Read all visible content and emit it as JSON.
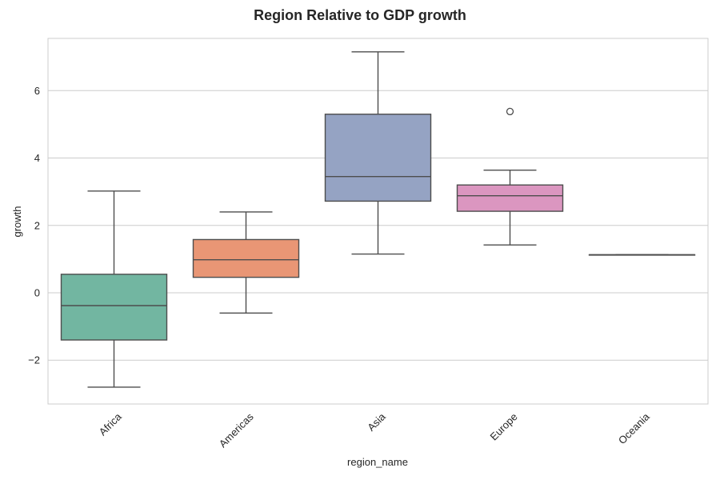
{
  "chart_data": {
    "type": "box",
    "title": "Region Relative to GDP growth",
    "xlabel": "region_name",
    "ylabel": "growth",
    "ylim": [
      -3.3,
      7.55
    ],
    "yticks": [
      -2,
      0,
      2,
      4,
      6
    ],
    "ytick_labels": [
      "−2",
      "0",
      "2",
      "4",
      "6"
    ],
    "grid": true,
    "categories": [
      "Africa",
      "Americas",
      "Asia",
      "Europe",
      "Oceania"
    ],
    "boxes": [
      {
        "name": "Africa",
        "whisker_low": -2.8,
        "q1": -1.4,
        "median": -0.38,
        "q3": 0.55,
        "whisker_high": 3.02,
        "outliers": [],
        "color": "#72b6a1"
      },
      {
        "name": "Americas",
        "whisker_low": -0.6,
        "q1": 0.46,
        "median": 0.98,
        "q3": 1.58,
        "whisker_high": 2.4,
        "outliers": [],
        "color": "#e99675"
      },
      {
        "name": "Asia",
        "whisker_low": 1.15,
        "q1": 2.72,
        "median": 3.45,
        "q3": 5.3,
        "whisker_high": 7.15,
        "outliers": [],
        "color": "#95a3c3"
      },
      {
        "name": "Europe",
        "whisker_low": 1.42,
        "q1": 2.42,
        "median": 2.88,
        "q3": 3.2,
        "whisker_high": 3.64,
        "outliers": [
          5.38
        ],
        "color": "#db96c0"
      },
      {
        "name": "Oceania",
        "whisker_low": 1.13,
        "q1": 1.13,
        "median": 1.13,
        "q3": 1.13,
        "whisker_high": 1.13,
        "outliers": [],
        "color": "#a9d06e"
      }
    ]
  }
}
